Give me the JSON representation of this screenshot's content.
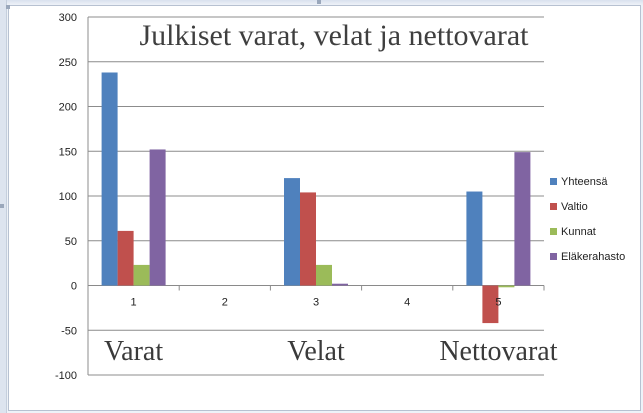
{
  "chart_data": {
    "type": "bar",
    "title": "Julkiset varat, velat ja nettovarat",
    "xlabel": "",
    "ylabel": "",
    "categories": [
      "1",
      "2",
      "3",
      "4",
      "5"
    ],
    "series": [
      {
        "name": "Yhteensä",
        "color": "#4f81bd",
        "values": [
          238,
          0,
          120,
          0,
          105
        ]
      },
      {
        "name": "Valtio",
        "color": "#c0504d",
        "values": [
          61,
          0,
          104,
          0,
          -42
        ]
      },
      {
        "name": "Kunnat",
        "color": "#9bbb59",
        "values": [
          23,
          0,
          23,
          0,
          -2
        ]
      },
      {
        "name": "Eläkerahasto",
        "color": "#8064a2",
        "values": [
          152,
          0,
          2,
          0,
          149
        ]
      }
    ],
    "ylim": [
      -100,
      300
    ],
    "yticks": [
      300,
      250,
      200,
      150,
      100,
      50,
      0,
      -50,
      -100
    ],
    "group_labels": [
      "Varat",
      "Velat",
      "Nettovarat"
    ],
    "grid": true,
    "legend_position": "right"
  }
}
